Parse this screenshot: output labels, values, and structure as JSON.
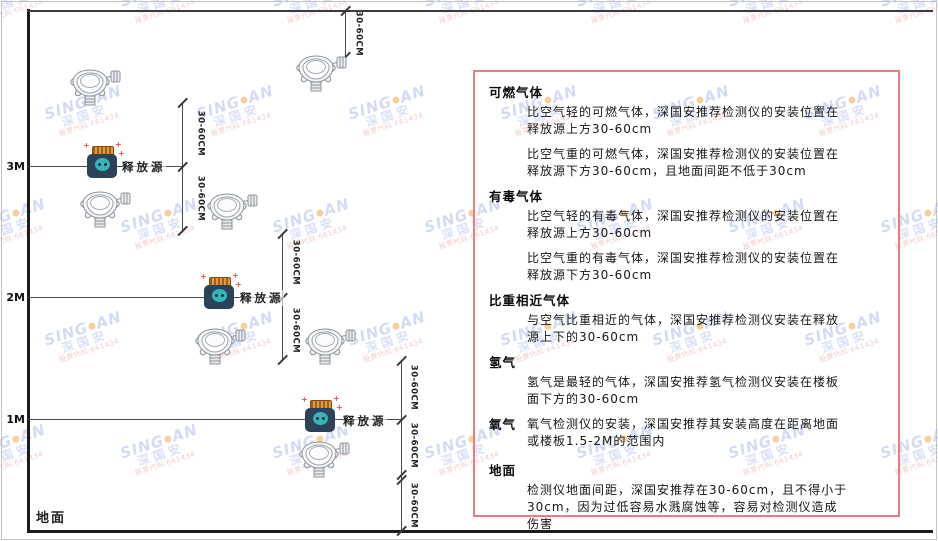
{
  "watermark": {
    "brand_left": "SING",
    "brand_right": "AN",
    "cn": "深国安",
    "code": "股票代码:661434"
  },
  "diagram": {
    "height_labels": [
      "3M",
      "2M",
      "1M"
    ],
    "ground_label": "地面",
    "source_label": "释放源",
    "dim_label": "30-60CM"
  },
  "panel": {
    "sections": [
      {
        "heading": "可燃气体",
        "paragraphs": [
          "比空气轻的可燃气体，深国安推荐检测仪的安装位置在释放源上方30-60cm",
          "比空气重的可燃气体，深国安推荐检测仪的安装位置在释放源下方30-60cm，且地面间距不低于30cm"
        ]
      },
      {
        "heading": "有毒气体",
        "paragraphs": [
          "比空气轻的有毒气体，深国安推荐检测仪的安装位置在释放源上方30-60cm",
          "比空气重的有毒气体，深国安推荐检测仪的安装位置在释放源下方30-60cm"
        ]
      },
      {
        "heading": "比重相近气体",
        "paragraphs": [
          "与空气比重相近的气体，深国安推荐检测仪安装在释放源上下的30-60cm"
        ]
      },
      {
        "heading": "氢气",
        "paragraphs": [
          "氢气是最轻的气体，深国安推荐氢气检测仪安装在楼板面下方的30-60cm"
        ]
      },
      {
        "heading": "氧气",
        "paragraphs": [
          "氧气检测仪的安装，深国安推荐其安装高度在距离地面或楼板1.5-2M的范围内"
        ]
      },
      {
        "heading": "地面",
        "paragraphs": [
          "检测仪地面间距，深国安推荐在30-60cm，且不得小于30cm，因为过低容易水溅腐蚀等，容易对检测仪造成伤害"
        ]
      }
    ]
  }
}
